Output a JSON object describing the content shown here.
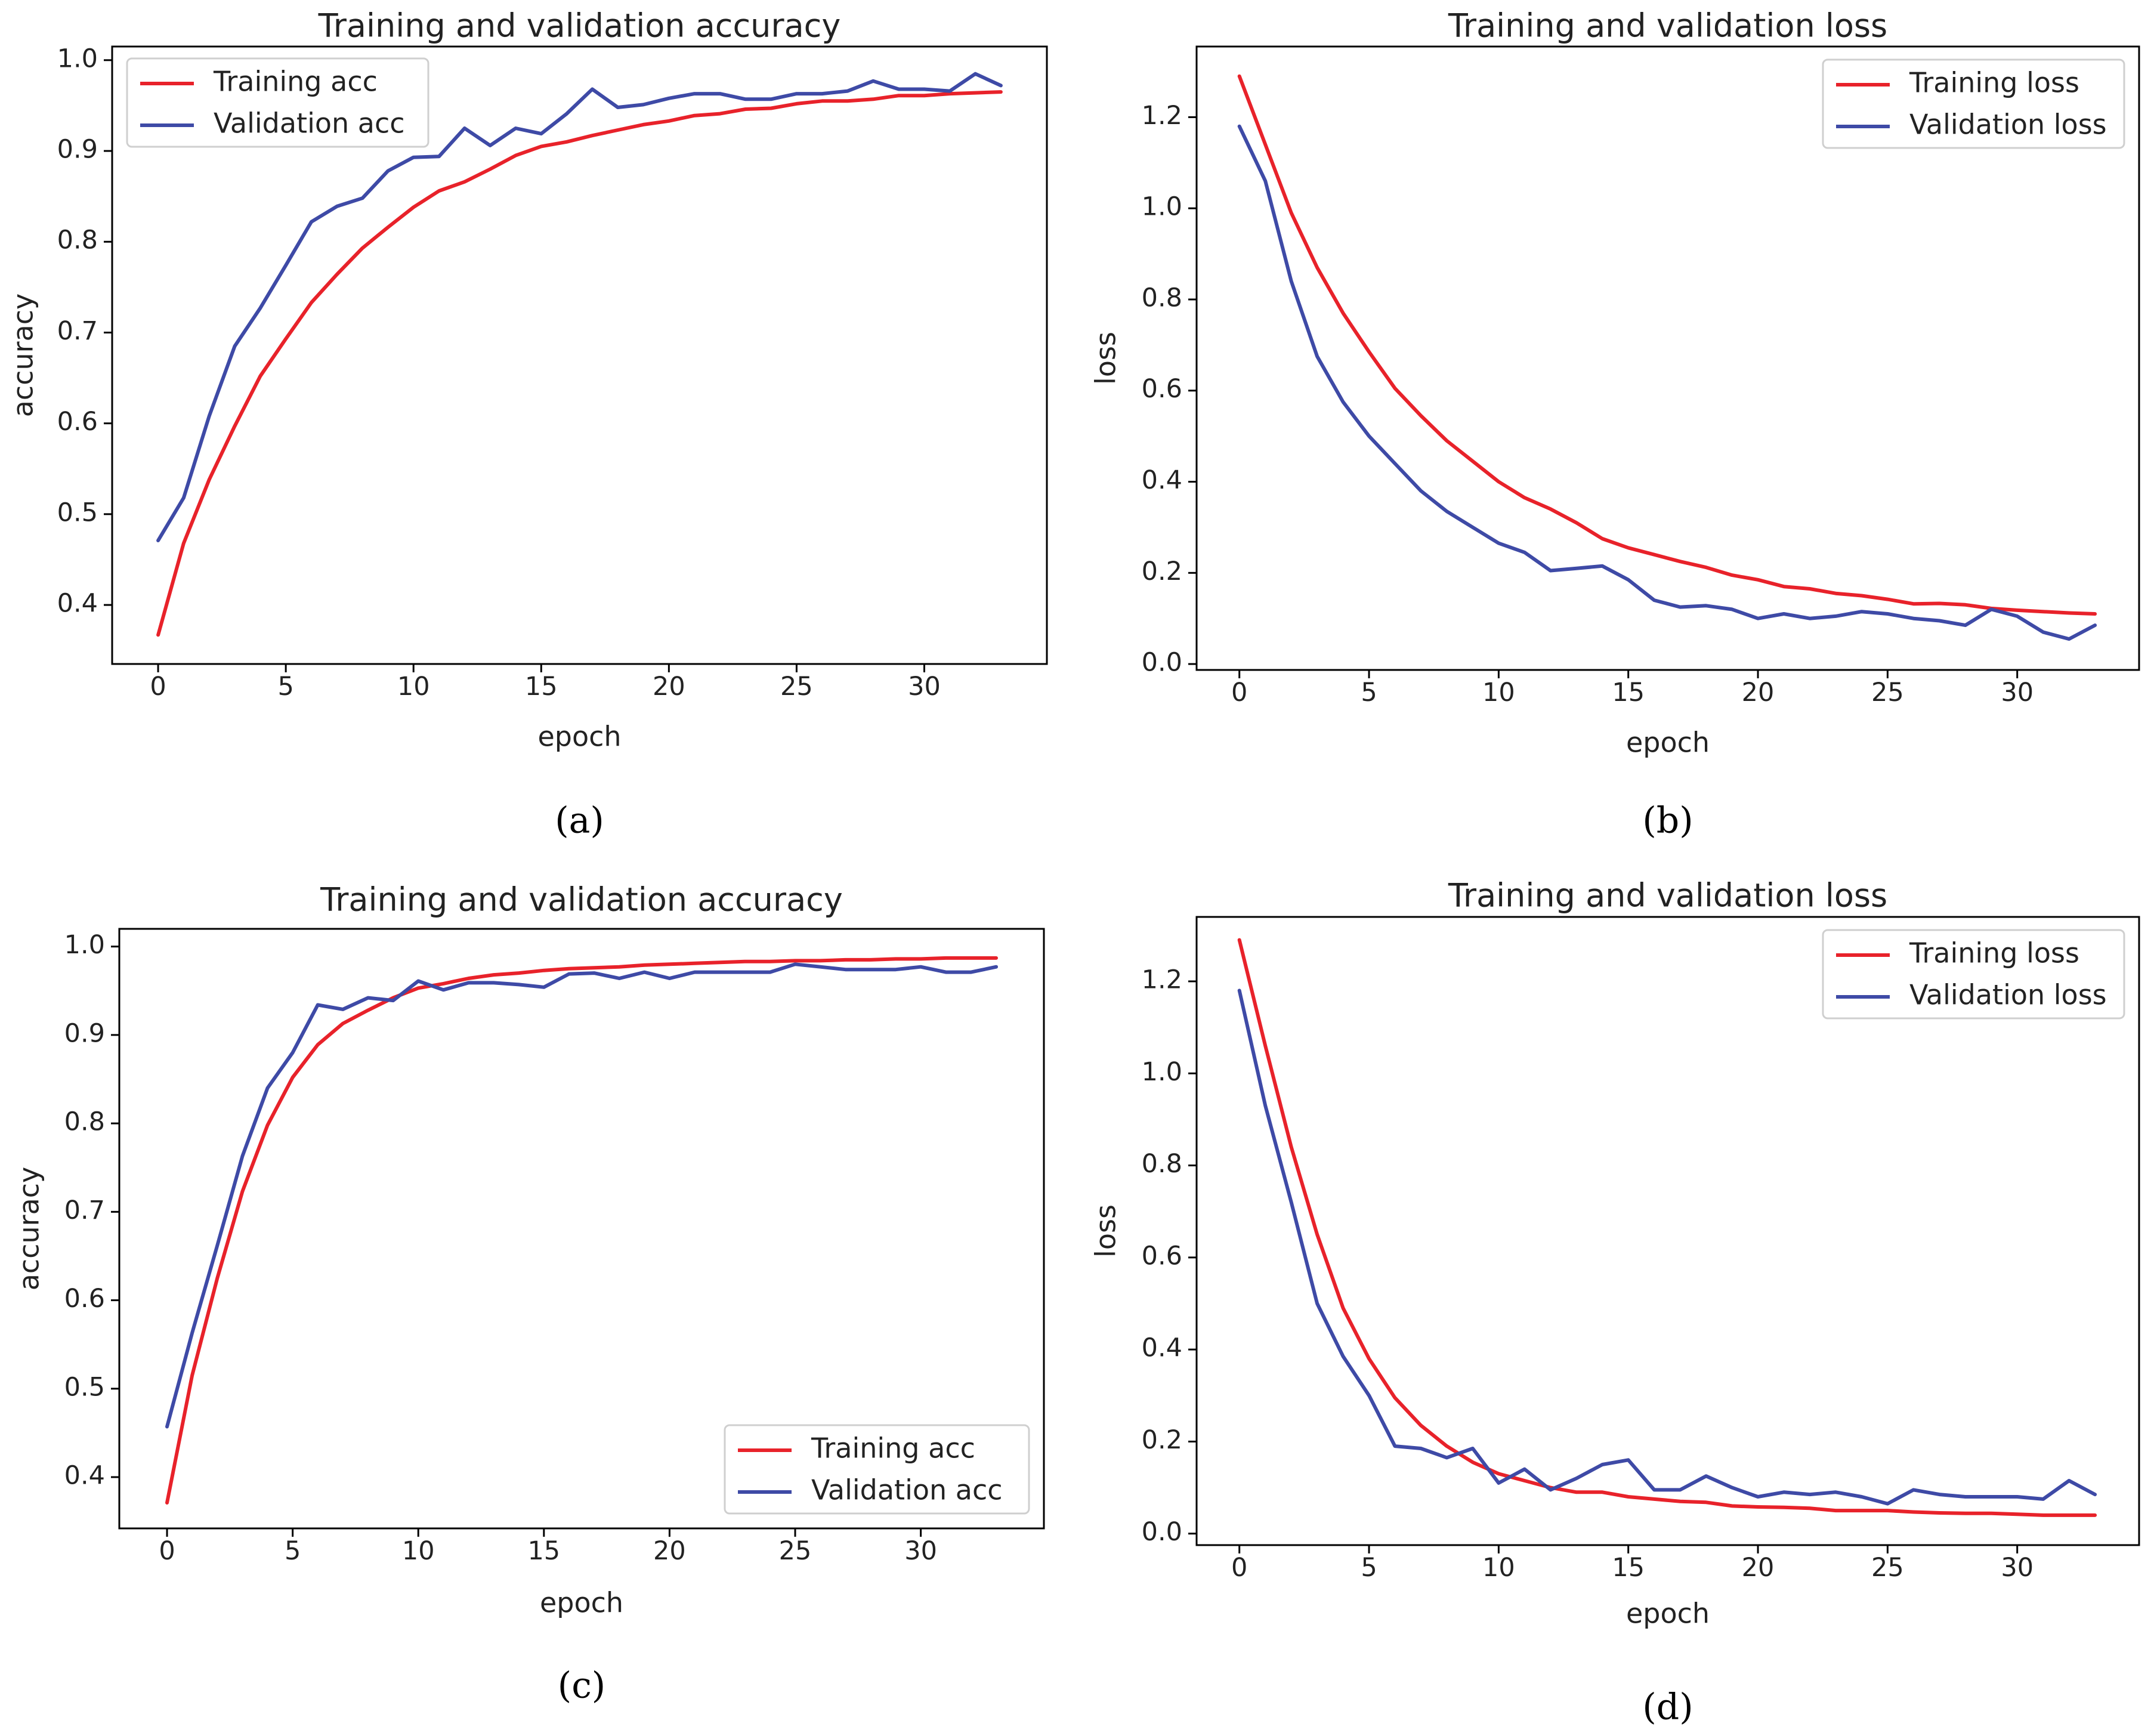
{
  "colors": {
    "training": "#e8222a",
    "validation": "#3e4aa6"
  },
  "chart_data": [
    {
      "id": "a",
      "type": "line",
      "caption": "(a)",
      "title": "Training and validation accuracy",
      "xlabel": "epoch",
      "ylabel": "accuracy",
      "xlim": [
        -1.8,
        34.8
      ],
      "ylim": [
        0.335,
        1.015
      ],
      "xticks": [
        0,
        5,
        10,
        15,
        20,
        25,
        30
      ],
      "xtick_labels": [
        "0",
        "5",
        "10",
        "15",
        "20",
        "25",
        "30"
      ],
      "yticks": [
        0.4,
        0.5,
        0.6,
        0.7,
        0.8,
        0.9,
        1.0
      ],
      "ytick_labels": [
        "0.4",
        "0.5",
        "0.6",
        "0.7",
        "0.8",
        "0.9",
        "1.0"
      ],
      "legend_position": "top-left",
      "x": [
        0,
        1,
        2,
        3,
        4,
        5,
        6,
        7,
        8,
        9,
        10,
        11,
        12,
        13,
        14,
        15,
        16,
        17,
        18,
        19,
        20,
        21,
        22,
        23,
        24,
        25,
        26,
        27,
        28,
        29,
        30,
        31,
        32,
        33
      ],
      "series": [
        {
          "name": "Training acc",
          "color_key": "training",
          "values": [
            0.367,
            0.468,
            0.538,
            0.597,
            0.652,
            0.693,
            0.733,
            0.764,
            0.793,
            0.816,
            0.838,
            0.856,
            0.866,
            0.88,
            0.895,
            0.905,
            0.91,
            0.917,
            0.923,
            0.929,
            0.933,
            0.939,
            0.941,
            0.946,
            0.947,
            0.952,
            0.955,
            0.955,
            0.957,
            0.961,
            0.961,
            0.963,
            0.964,
            0.965
          ]
        },
        {
          "name": "Validation acc",
          "color_key": "validation",
          "values": [
            0.471,
            0.518,
            0.608,
            0.685,
            0.727,
            0.774,
            0.822,
            0.839,
            0.848,
            0.878,
            0.893,
            0.894,
            0.925,
            0.906,
            0.925,
            0.919,
            0.941,
            0.968,
            0.948,
            0.951,
            0.958,
            0.963,
            0.963,
            0.957,
            0.957,
            0.963,
            0.963,
            0.966,
            0.977,
            0.968,
            0.968,
            0.966,
            0.985,
            0.972
          ]
        }
      ]
    },
    {
      "id": "b",
      "type": "line",
      "caption": "(b)",
      "title": "Training and validation loss",
      "xlabel": "epoch",
      "ylabel": "loss",
      "xlim": [
        -1.65,
        34.7
      ],
      "ylim": [
        -0.013,
        1.355
      ],
      "xticks": [
        0,
        5,
        10,
        15,
        20,
        25,
        30
      ],
      "xtick_labels": [
        "0",
        "5",
        "10",
        "15",
        "20",
        "25",
        "30"
      ],
      "yticks": [
        0.0,
        0.2,
        0.4,
        0.6,
        0.8,
        1.0,
        1.2
      ],
      "ytick_labels": [
        "0.0",
        "0.2",
        "0.4",
        "0.6",
        "0.8",
        "1.0",
        "1.2"
      ],
      "legend_position": "top-right",
      "x": [
        0,
        1,
        2,
        3,
        4,
        5,
        6,
        7,
        8,
        9,
        10,
        11,
        12,
        13,
        14,
        15,
        16,
        17,
        18,
        19,
        20,
        21,
        22,
        23,
        24,
        25,
        26,
        27,
        28,
        29,
        30,
        31,
        32,
        33
      ],
      "series": [
        {
          "name": "Training loss",
          "color_key": "training",
          "values": [
            1.29,
            1.14,
            0.99,
            0.87,
            0.77,
            0.685,
            0.605,
            0.545,
            0.49,
            0.445,
            0.4,
            0.365,
            0.34,
            0.31,
            0.275,
            0.255,
            0.24,
            0.225,
            0.212,
            0.195,
            0.185,
            0.17,
            0.165,
            0.155,
            0.15,
            0.142,
            0.132,
            0.133,
            0.13,
            0.122,
            0.118,
            0.115,
            0.112,
            0.11
          ]
        },
        {
          "name": "Validation loss",
          "color_key": "validation",
          "values": [
            1.18,
            1.06,
            0.84,
            0.675,
            0.575,
            0.5,
            0.44,
            0.38,
            0.335,
            0.3,
            0.265,
            0.245,
            0.205,
            0.21,
            0.215,
            0.185,
            0.14,
            0.125,
            0.128,
            0.12,
            0.1,
            0.11,
            0.1,
            0.105,
            0.115,
            0.11,
            0.1,
            0.095,
            0.085,
            0.12,
            0.105,
            0.07,
            0.055,
            0.085
          ]
        }
      ]
    },
    {
      "id": "c",
      "type": "line",
      "caption": "(c)",
      "title": "Training and validation accuracy",
      "xlabel": "epoch",
      "ylabel": "accuracy",
      "xlim": [
        -1.9,
        34.9
      ],
      "ylim": [
        0.342,
        1.02
      ],
      "xticks": [
        0,
        5,
        10,
        15,
        20,
        25,
        30
      ],
      "xtick_labels": [
        "0",
        "5",
        "10",
        "15",
        "20",
        "25",
        "30"
      ],
      "yticks": [
        0.4,
        0.5,
        0.6,
        0.7,
        0.8,
        0.9,
        1.0
      ],
      "ytick_labels": [
        "0.4",
        "0.5",
        "0.6",
        "0.7",
        "0.8",
        "0.9",
        "1.0"
      ],
      "legend_position": "bottom-right",
      "x": [
        0,
        1,
        2,
        3,
        4,
        5,
        6,
        7,
        8,
        9,
        10,
        11,
        12,
        13,
        14,
        15,
        16,
        17,
        18,
        19,
        20,
        21,
        22,
        23,
        24,
        25,
        26,
        27,
        28,
        29,
        30,
        31,
        32,
        33
      ],
      "series": [
        {
          "name": "Training acc",
          "color_key": "training",
          "values": [
            0.371,
            0.515,
            0.625,
            0.723,
            0.798,
            0.852,
            0.889,
            0.913,
            0.928,
            0.942,
            0.953,
            0.958,
            0.964,
            0.968,
            0.97,
            0.973,
            0.975,
            0.976,
            0.977,
            0.979,
            0.98,
            0.981,
            0.982,
            0.983,
            0.983,
            0.984,
            0.984,
            0.985,
            0.985,
            0.986,
            0.986,
            0.987,
            0.987,
            0.987
          ]
        },
        {
          "name": "Validation acc",
          "color_key": "validation",
          "values": [
            0.457,
            0.563,
            0.662,
            0.763,
            0.84,
            0.88,
            0.934,
            0.929,
            0.942,
            0.939,
            0.961,
            0.951,
            0.959,
            0.959,
            0.957,
            0.954,
            0.969,
            0.97,
            0.964,
            0.971,
            0.964,
            0.971,
            0.971,
            0.971,
            0.971,
            0.98,
            0.977,
            0.974,
            0.974,
            0.974,
            0.977,
            0.971,
            0.971,
            0.977
          ]
        }
      ]
    },
    {
      "id": "d",
      "type": "line",
      "caption": "(d)",
      "title": "Training and validation loss",
      "xlabel": "epoch",
      "ylabel": "loss",
      "xlim": [
        -1.65,
        34.7
      ],
      "ylim": [
        -0.025,
        1.34
      ],
      "xticks": [
        0,
        5,
        10,
        15,
        20,
        25,
        30
      ],
      "xtick_labels": [
        "0",
        "5",
        "10",
        "15",
        "20",
        "25",
        "30"
      ],
      "yticks": [
        0.0,
        0.2,
        0.4,
        0.6,
        0.8,
        1.0,
        1.2
      ],
      "ytick_labels": [
        "0.0",
        "0.2",
        "0.4",
        "0.6",
        "0.8",
        "1.0",
        "1.2"
      ],
      "legend_position": "top-right",
      "x": [
        0,
        1,
        2,
        3,
        4,
        5,
        6,
        7,
        8,
        9,
        10,
        11,
        12,
        13,
        14,
        15,
        16,
        17,
        18,
        19,
        20,
        21,
        22,
        23,
        24,
        25,
        26,
        27,
        28,
        29,
        30,
        31,
        32,
        33
      ],
      "series": [
        {
          "name": "Training loss",
          "color_key": "training",
          "values": [
            1.29,
            1.06,
            0.84,
            0.65,
            0.49,
            0.38,
            0.295,
            0.235,
            0.19,
            0.155,
            0.13,
            0.115,
            0.1,
            0.09,
            0.09,
            0.08,
            0.075,
            0.07,
            0.068,
            0.06,
            0.058,
            0.057,
            0.055,
            0.05,
            0.05,
            0.05,
            0.047,
            0.045,
            0.044,
            0.044,
            0.042,
            0.04,
            0.04,
            0.04
          ]
        },
        {
          "name": "Validation loss",
          "color_key": "validation",
          "values": [
            1.18,
            0.93,
            0.72,
            0.5,
            0.385,
            0.3,
            0.19,
            0.185,
            0.165,
            0.185,
            0.11,
            0.14,
            0.095,
            0.12,
            0.15,
            0.16,
            0.095,
            0.095,
            0.125,
            0.1,
            0.08,
            0.09,
            0.085,
            0.09,
            0.08,
            0.065,
            0.095,
            0.085,
            0.08,
            0.08,
            0.08,
            0.075,
            0.115,
            0.085
          ]
        }
      ]
    }
  ]
}
